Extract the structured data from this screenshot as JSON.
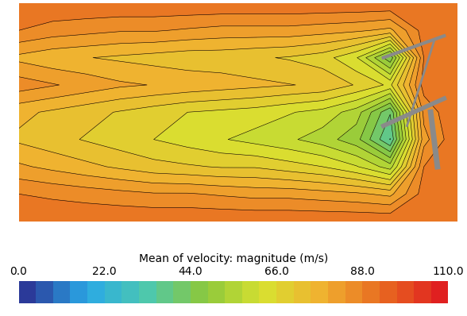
{
  "chart_data": {
    "type": "contour",
    "tick_labels": false,
    "cells": [
      [
        92,
        92,
        92,
        92,
        92,
        92,
        92,
        92,
        92,
        92,
        92,
        92,
        92,
        92
      ],
      [
        88,
        86,
        85,
        84,
        84,
        83,
        82,
        82,
        82,
        81,
        80,
        78,
        90,
        92
      ],
      [
        78,
        76,
        75,
        74,
        73,
        72,
        72,
        71,
        70,
        68,
        62,
        45,
        88,
        92
      ],
      [
        86,
        84,
        82,
        80,
        79,
        78,
        77,
        76,
        75,
        74,
        70,
        65,
        90,
        92
      ],
      [
        76,
        74,
        72,
        70,
        68,
        66,
        65,
        64,
        62,
        60,
        55,
        40,
        85,
        92
      ],
      [
        74,
        72,
        70,
        68,
        66,
        64,
        62,
        60,
        58,
        55,
        50,
        35,
        82,
        92
      ],
      [
        80,
        78,
        76,
        74,
        72,
        71,
        70,
        70,
        68,
        66,
        62,
        55,
        88,
        92
      ],
      [
        88,
        87,
        86,
        85,
        84,
        84,
        83,
        82,
        82,
        81,
        80,
        78,
        90,
        92
      ],
      [
        92,
        92,
        92,
        92,
        92,
        92,
        92,
        92,
        92,
        92,
        92,
        92,
        92,
        92
      ]
    ],
    "colorbar": {
      "label": "Mean of velocity: magnitude (m/s)",
      "range": [
        0,
        110
      ],
      "ticks": [
        {
          "value": 0,
          "label": "0.0"
        },
        {
          "value": 22,
          "label": "22.0"
        },
        {
          "value": 44,
          "label": "44.0"
        },
        {
          "value": 66,
          "label": "66.0"
        },
        {
          "value": 88,
          "label": "88.0"
        },
        {
          "value": 110,
          "label": "110.0"
        }
      ]
    }
  }
}
